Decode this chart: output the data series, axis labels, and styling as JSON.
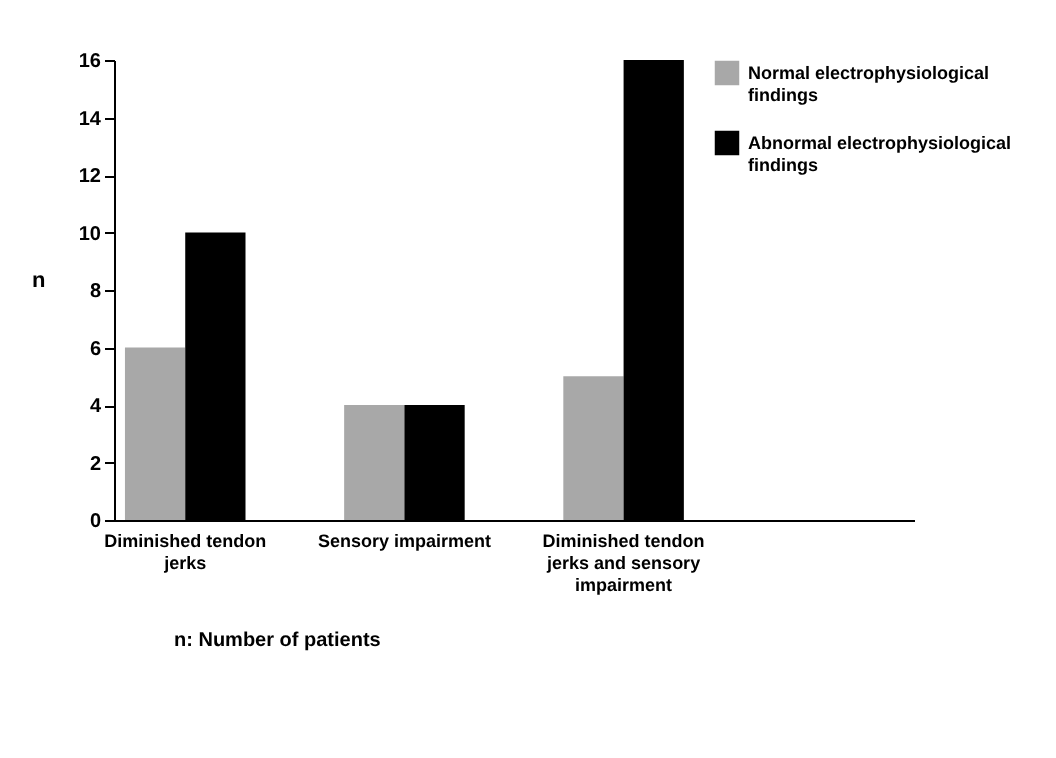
{
  "chart_data": {
    "type": "bar",
    "ylabel": "n",
    "categories": [
      "Diminished tendon jerks",
      "Sensory impairment",
      "Diminished tendon jerks and sensory impairment",
      null
    ],
    "series": [
      {
        "name": "Normal electrophysiological findings",
        "color": "#a8a8a8",
        "values": [
          6,
          4,
          5,
          null
        ]
      },
      {
        "name": "Abnormal electrophysiological findings",
        "color": "#000000",
        "values": [
          10,
          4,
          16,
          null
        ]
      }
    ],
    "ylim": [
      0,
      16
    ],
    "yticks": [
      0,
      2,
      4,
      6,
      8,
      10,
      12,
      14,
      16
    ],
    "grid": false,
    "legend": "top right",
    "annotations": [
      "n: Number of patients"
    ]
  }
}
